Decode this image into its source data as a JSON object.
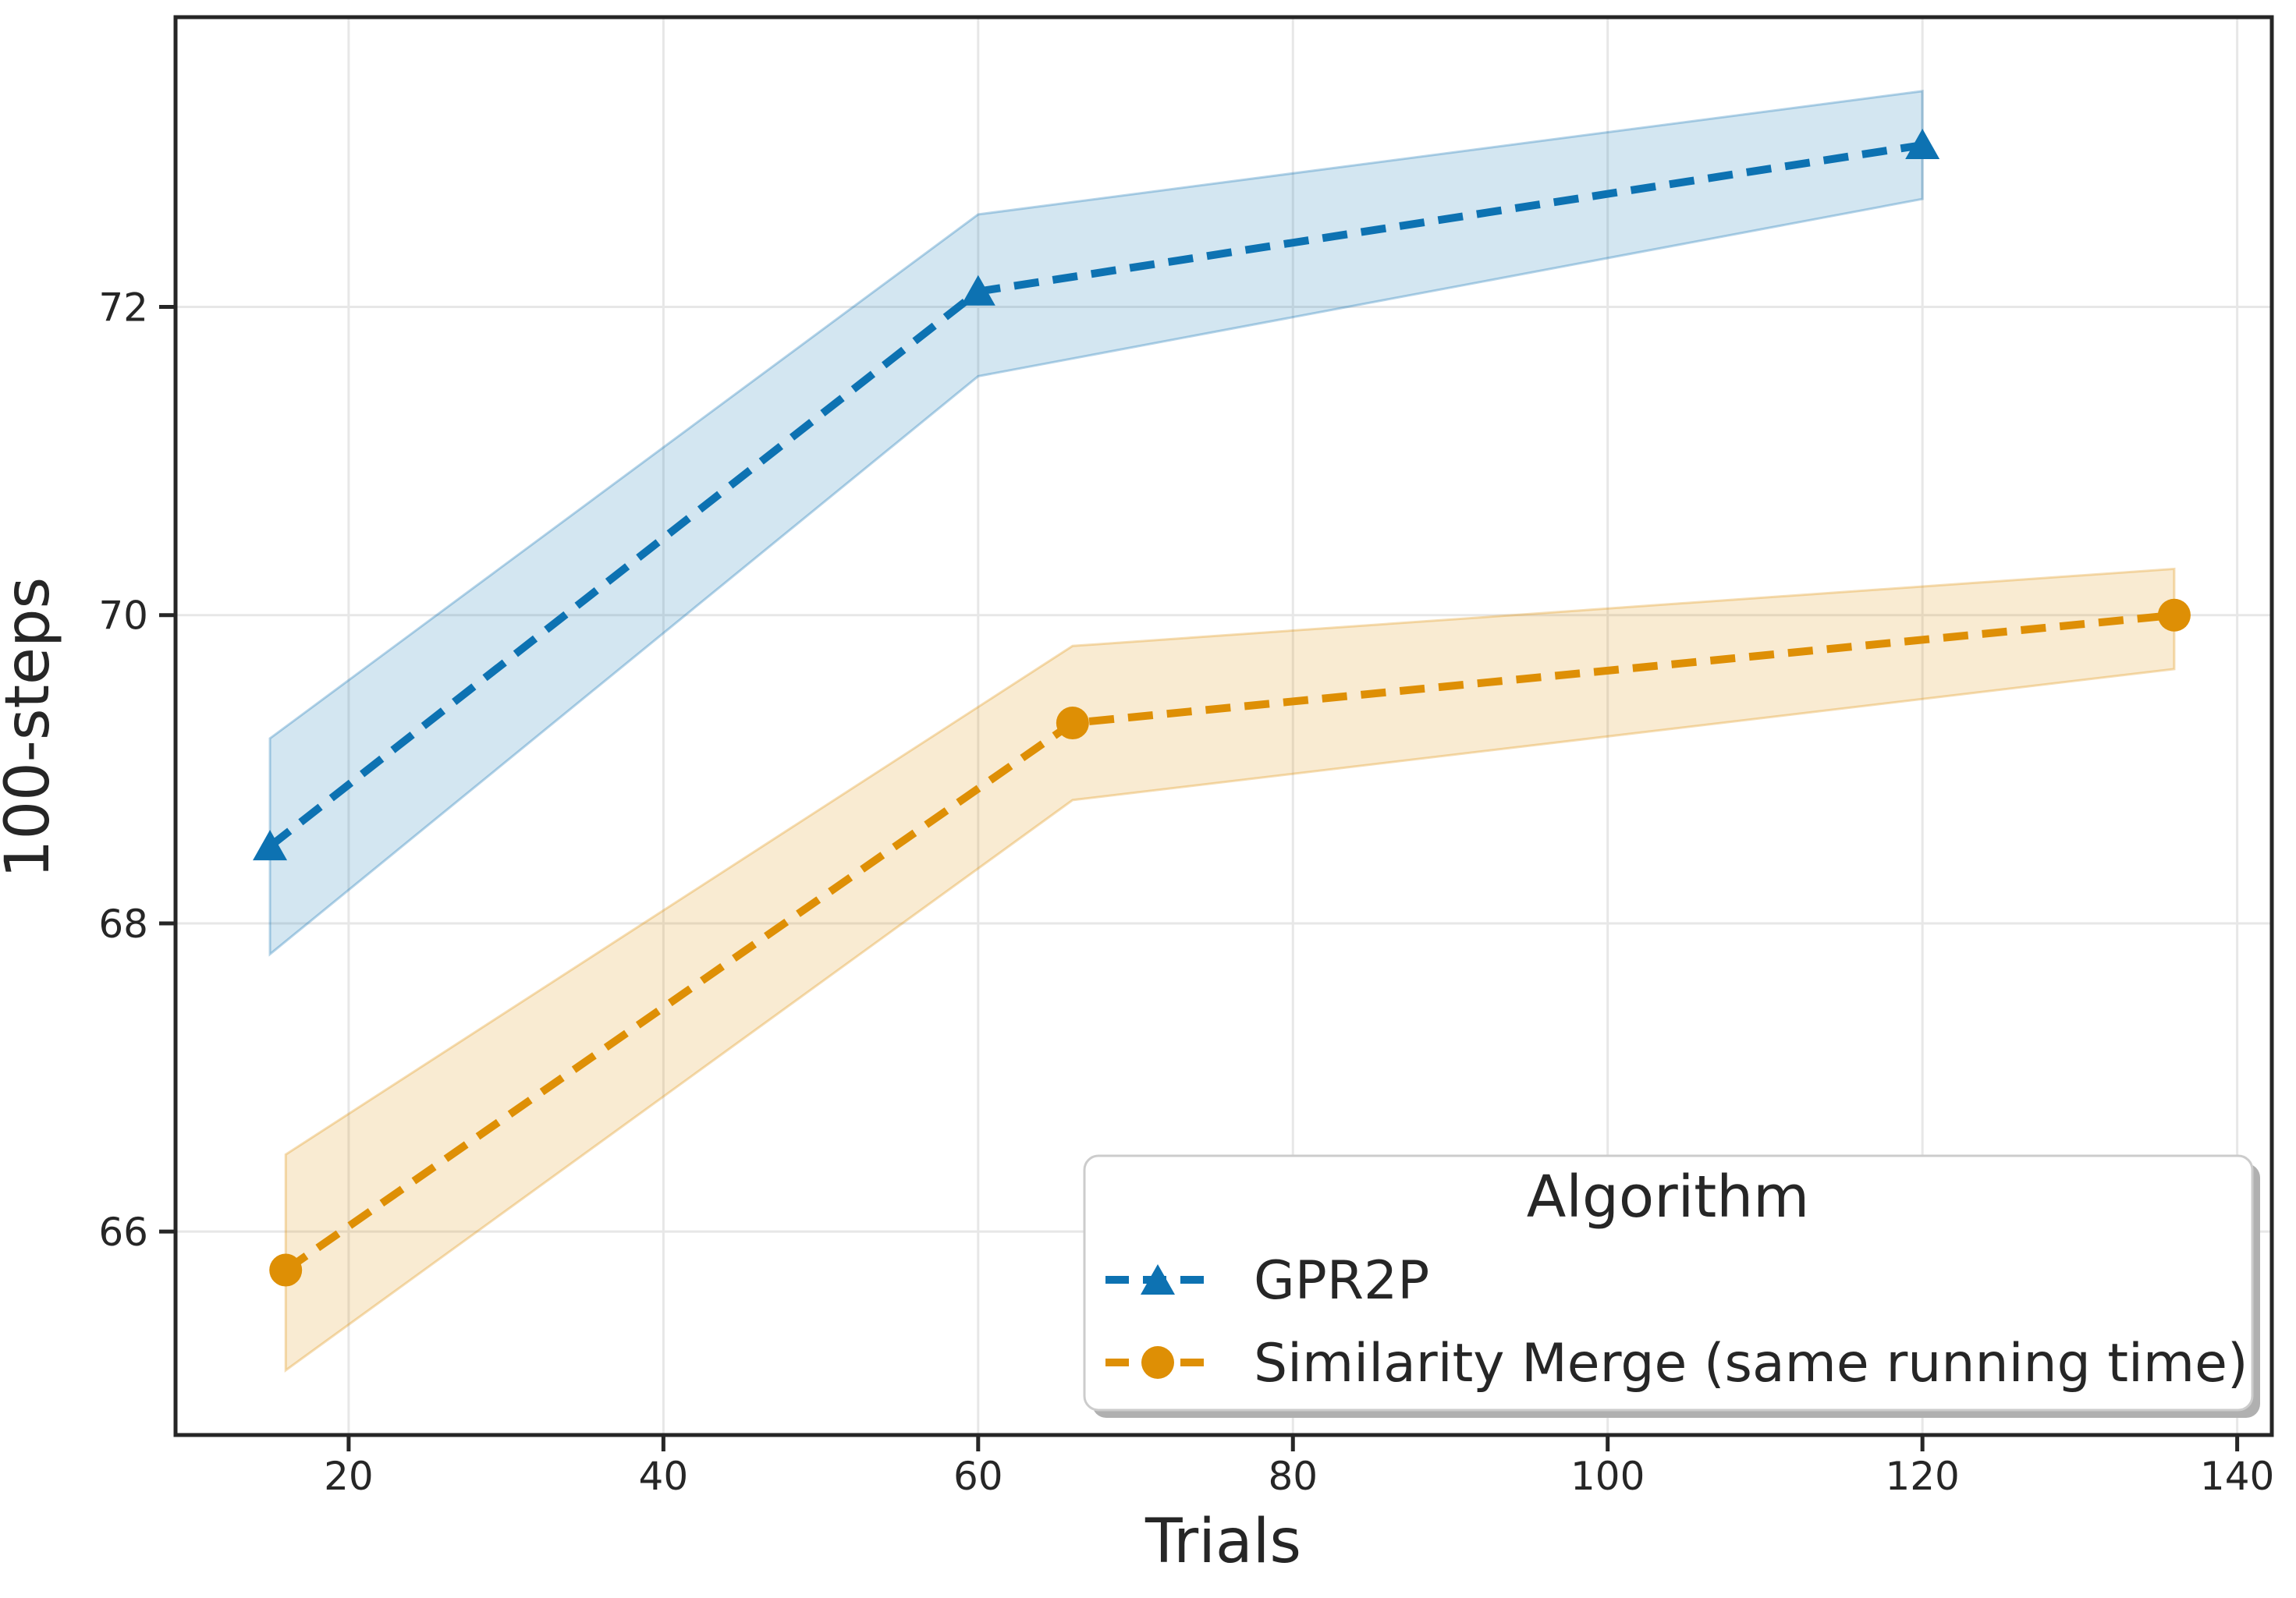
{
  "chart_data": {
    "type": "line",
    "title": "",
    "xlabel": "Trials",
    "ylabel": "100-steps",
    "xlim": [
      9,
      142.2
    ],
    "ylim": [
      64.68,
      73.88
    ],
    "x_ticks": [
      20,
      40,
      60,
      80,
      100,
      120,
      140
    ],
    "y_ticks": [
      66,
      68,
      70,
      72
    ],
    "grid": true,
    "legend": {
      "title": "Algorithm",
      "position": "lower right"
    },
    "series": [
      {
        "id": "gpr2p",
        "name": "GPR2P",
        "color": "#0d72b2",
        "marker": "triangle",
        "linestyle": "dashed",
        "x": [
          15,
          60,
          120
        ],
        "y": [
          68.5,
          72.1,
          73.05
        ],
        "band_lower": [
          67.8,
          71.55,
          72.7
        ],
        "band_upper": [
          69.2,
          72.6,
          73.4
        ]
      },
      {
        "id": "similarity-merge",
        "name": "Similarity Merge (same running time)",
        "color": "#de8f05",
        "marker": "circle",
        "linestyle": "dashed",
        "x": [
          16,
          66,
          136
        ],
        "y": [
          65.75,
          69.3,
          70.0
        ],
        "band_lower": [
          65.1,
          68.8,
          69.65
        ],
        "band_upper": [
          66.5,
          69.8,
          70.3
        ]
      }
    ]
  },
  "styles": {
    "background": "#ffffff",
    "grid_color": "#e7e7e7",
    "axis_color": "#262626",
    "text_color": "#262626",
    "legend_border": "#cccccc",
    "legend_shadow": "#b0b0b0",
    "band_opacity": 0.18,
    "band_edge_opacity": 0.3
  }
}
